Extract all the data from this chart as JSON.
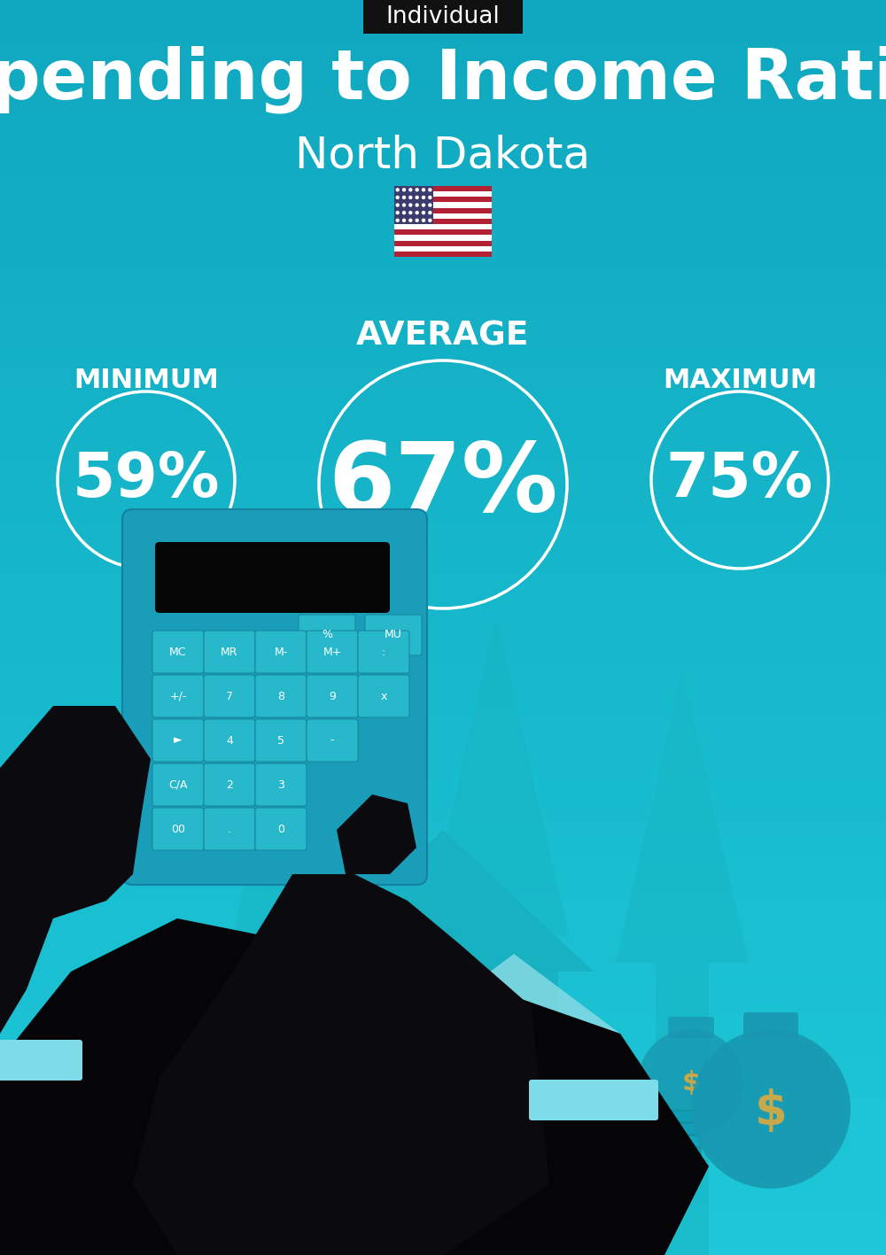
{
  "bg_color": "#1EC8D8",
  "tag_bg": "#111111",
  "tag_text": "Individual",
  "tag_text_color": "#ffffff",
  "title": "Spending to Income Ratio",
  "subtitle": "North Dakota",
  "title_color": "#ffffff",
  "subtitle_color": "#ffffff",
  "avg_label": "AVERAGE",
  "min_label": "MINIMUM",
  "max_label": "MAXIMUM",
  "label_color": "#ffffff",
  "avg_value": "67%",
  "min_value": "59%",
  "max_value": "75%",
  "value_color": "#ffffff",
  "circle_color": "#ffffff",
  "arrow_color": "#17B5C4",
  "house_color": "#18B0C0",
  "house_light": "#8DDCE6",
  "calc_body": "#1A9DB8",
  "calc_screen": "#050505",
  "calc_btn": "#28B8CC",
  "hand_color": "#0a0a0f",
  "suit_color": "#050508",
  "cuff_color": "#7DDCE8",
  "money_bag_color": "#1898B0",
  "money_sign_color": "#C8A84B",
  "money_stack": "#10A0B8",
  "fig_width": 10.0,
  "fig_height": 14.17
}
